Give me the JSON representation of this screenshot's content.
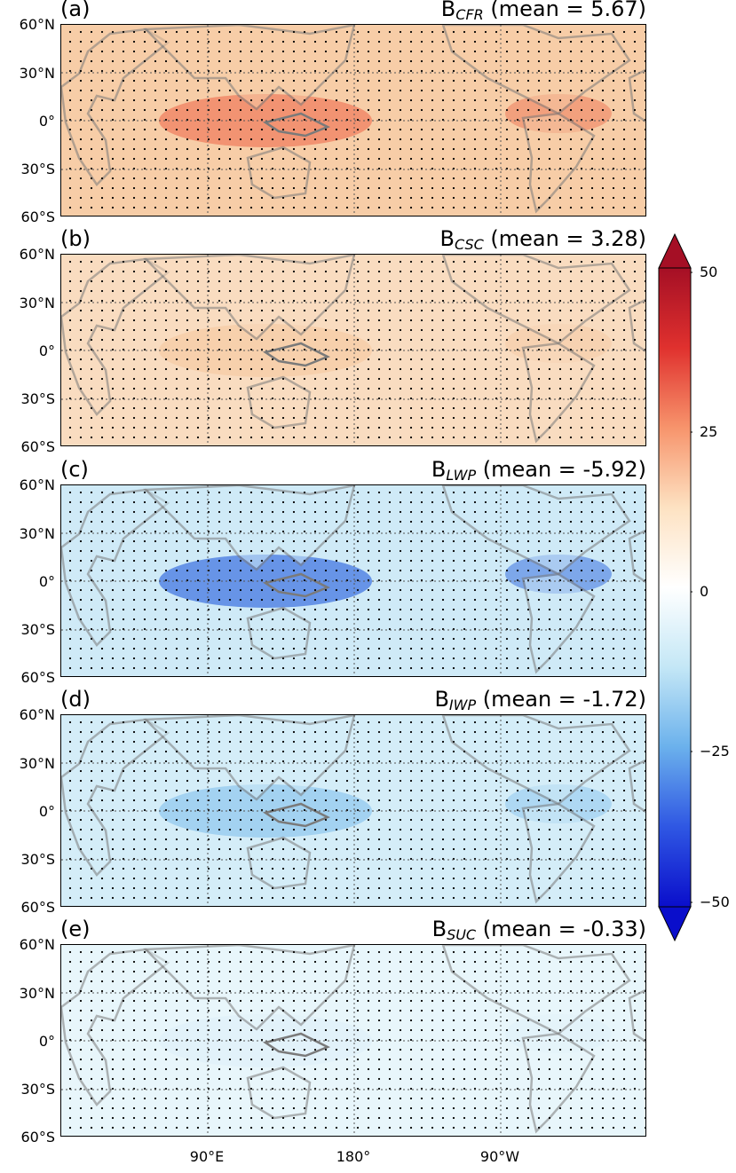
{
  "panels": [
    {
      "letter": "(a)",
      "var_main": "B",
      "var_sub": "CFR",
      "mean_text": " (mean = 5.67)",
      "fill": "#f7cda7",
      "tropics_fill": "#ef7b5b"
    },
    {
      "letter": "(b)",
      "var_main": "B",
      "var_sub": "CSC",
      "mean_text": " (mean = 3.28)",
      "fill": "#f9dcc0",
      "tropics_fill": "#f6cba4"
    },
    {
      "letter": "(c)",
      "var_main": "B",
      "var_sub": "LWP",
      "mean_text": " (mean = -5.92)",
      "fill": "#cfeaf7",
      "tropics_fill": "#3a6fe0"
    },
    {
      "letter": "(d)",
      "var_main": "B",
      "var_sub": "IWP",
      "mean_text": " (mean = -1.72)",
      "fill": "#d4edf8",
      "tropics_fill": "#8ec6ee"
    },
    {
      "letter": "(e)",
      "var_main": "B",
      "var_sub": "SUC",
      "mean_text": " (mean = -0.33)",
      "fill": "#e8f6fb",
      "tropics_fill": "#dff1f9"
    }
  ],
  "lat_labels": [
    "60°N",
    "30°N",
    "0°",
    "30°S",
    "60°S"
  ],
  "lon_labels": [
    "90°E",
    "180°",
    "90°W"
  ],
  "colorbar": {
    "ticks": [
      "50",
      "25",
      "0",
      "−25",
      "−50"
    ],
    "colors": [
      "#a50f25",
      "#e0312e",
      "#f7946c",
      "#fde2c2",
      "#ffffff",
      "#c4e7f6",
      "#6bb1ec",
      "#2f57e3",
      "#0a0ecb"
    ]
  },
  "coast_color": "#7a7a7a"
}
